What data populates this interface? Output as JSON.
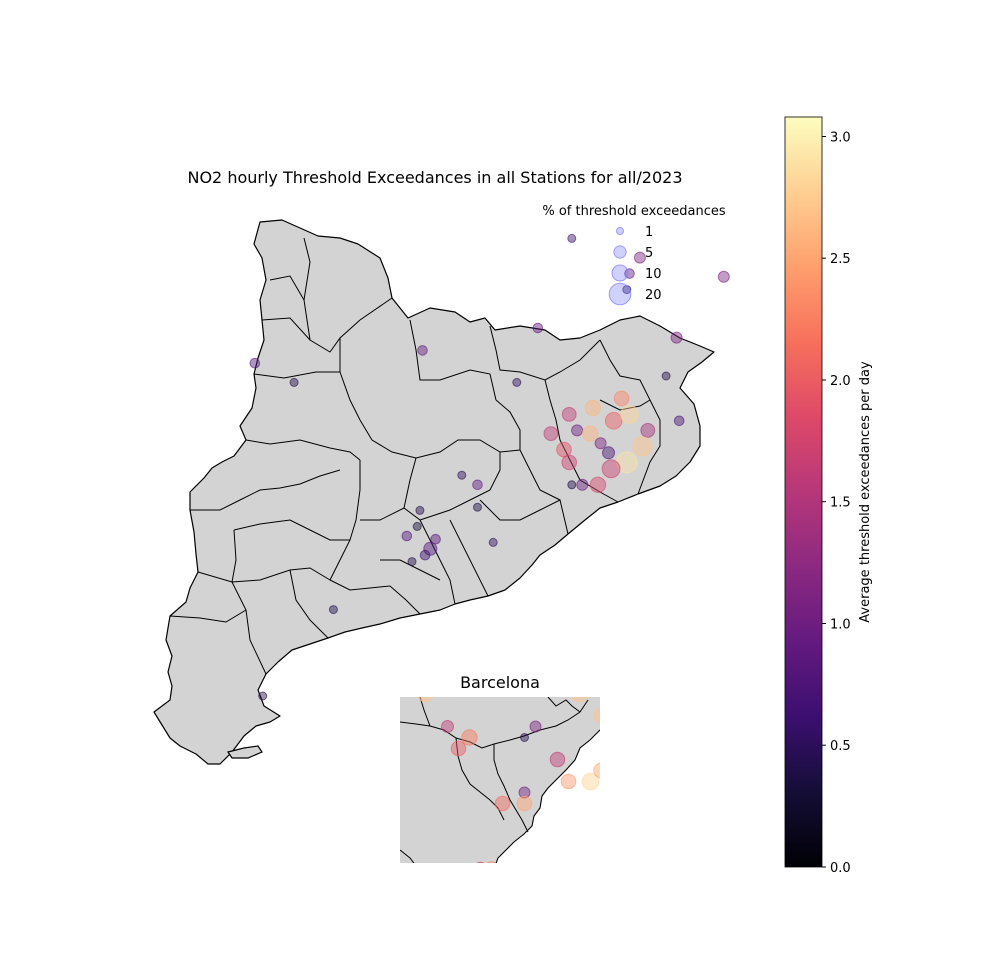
{
  "title": "NO2 hourly Threshold Exceedances in all Stations for all/2023",
  "legend": {
    "title": "% of threshold exceedances",
    "entries": [
      {
        "label": "1",
        "size": 1
      },
      {
        "label": "5",
        "size": 5
      },
      {
        "label": "10",
        "size": 10
      },
      {
        "label": "20",
        "size": 20
      }
    ],
    "color": "#7b7bff"
  },
  "colorbar": {
    "label": "Average threshold exceedances per day",
    "min": 0.0,
    "max": 3.08,
    "ticks": [
      "0.0",
      "0.5",
      "1.0",
      "1.5",
      "2.0",
      "2.5",
      "3.0"
    ],
    "tick_values": [
      0.0,
      0.5,
      1.0,
      1.5,
      2.0,
      2.5,
      3.0
    ],
    "colormap": "magma"
  },
  "inset": {
    "title": "Barcelona"
  },
  "colors": {
    "land": "#d3d3d3",
    "border": "#000000",
    "background": "#ffffff"
  },
  "chart_data": {
    "type": "scatter",
    "note_encoding": "size = % of threshold exceedances, color = average exceedances per day",
    "stations_main": [
      {
        "lon": 1.19,
        "lat": 41.8,
        "pct": 2,
        "avg": 0.9
      },
      {
        "lon": 1.76,
        "lat": 42.15,
        "pct": 1,
        "avg": 0.6
      },
      {
        "lon": 1.63,
        "lat": 41.87,
        "pct": 2,
        "avg": 0.9
      },
      {
        "lon": 1.55,
        "lat": 41.7,
        "pct": 1,
        "avg": 0.5
      },
      {
        "lon": 2.02,
        "lat": 42.09,
        "pct": 3,
        "avg": 1.1
      },
      {
        "lon": 1.98,
        "lat": 42.04,
        "pct": 2,
        "avg": 0.9
      },
      {
        "lon": 1.97,
        "lat": 41.99,
        "pct": 1,
        "avg": 0.4
      },
      {
        "lon": 2.16,
        "lat": 41.84,
        "pct": 3,
        "avg": 1.1
      },
      {
        "lon": 2.34,
        "lat": 42.03,
        "pct": 3,
        "avg": 1.1
      },
      {
        "lon": 2.12,
        "lat": 41.72,
        "pct": 1,
        "avg": 0.4
      },
      {
        "lon": 0.55,
        "lat": 41.76,
        "pct": 2,
        "avg": 0.8
      },
      {
        "lon": 0.7,
        "lat": 41.7,
        "pct": 1,
        "avg": 0.4
      },
      {
        "lon": 1.75,
        "lat": 41.6,
        "pct": 6,
        "avg": 1.6
      },
      {
        "lon": 1.84,
        "lat": 41.62,
        "pct": 8,
        "avg": 2.6
      },
      {
        "lon": 1.95,
        "lat": 41.65,
        "pct": 7,
        "avg": 2.3
      },
      {
        "lon": 1.92,
        "lat": 41.58,
        "pct": 10,
        "avg": 2.0
      },
      {
        "lon": 1.98,
        "lat": 41.6,
        "pct": 12,
        "avg": 2.8
      },
      {
        "lon": 2.05,
        "lat": 41.55,
        "pct": 6,
        "avg": 1.4
      },
      {
        "lon": 2.17,
        "lat": 41.58,
        "pct": 2,
        "avg": 0.7
      },
      {
        "lon": 1.68,
        "lat": 41.54,
        "pct": 6,
        "avg": 1.6
      },
      {
        "lon": 1.78,
        "lat": 41.55,
        "pct": 3,
        "avg": 1.0
      },
      {
        "lon": 1.83,
        "lat": 41.54,
        "pct": 8,
        "avg": 2.6
      },
      {
        "lon": 1.87,
        "lat": 41.51,
        "pct": 3,
        "avg": 1.1
      },
      {
        "lon": 1.73,
        "lat": 41.49,
        "pct": 7,
        "avg": 1.9
      },
      {
        "lon": 1.75,
        "lat": 41.45,
        "pct": 7,
        "avg": 1.7
      },
      {
        "lon": 1.9,
        "lat": 41.48,
        "pct": 4,
        "avg": 0.7
      },
      {
        "lon": 1.97,
        "lat": 41.45,
        "pct": 18,
        "avg": 2.9
      },
      {
        "lon": 2.03,
        "lat": 41.5,
        "pct": 14,
        "avg": 2.7
      },
      {
        "lon": 1.91,
        "lat": 41.43,
        "pct": 12,
        "avg": 1.7
      },
      {
        "lon": 1.86,
        "lat": 41.38,
        "pct": 8,
        "avg": 1.8
      },
      {
        "lon": 1.8,
        "lat": 41.38,
        "pct": 3,
        "avg": 1.0
      },
      {
        "lon": 1.76,
        "lat": 41.38,
        "pct": 1,
        "avg": 0.4
      },
      {
        "lon": 1.4,
        "lat": 41.38,
        "pct": 2,
        "avg": 0.9
      },
      {
        "lon": 1.34,
        "lat": 41.41,
        "pct": 1,
        "avg": 0.5
      },
      {
        "lon": 1.4,
        "lat": 41.31,
        "pct": 1,
        "avg": 0.4
      },
      {
        "lon": 1.46,
        "lat": 41.2,
        "pct": 1,
        "avg": 0.5
      },
      {
        "lon": 1.18,
        "lat": 41.3,
        "pct": 1,
        "avg": 0.4
      },
      {
        "lon": 1.17,
        "lat": 41.25,
        "pct": 1,
        "avg": 0.3
      },
      {
        "lon": 1.13,
        "lat": 41.22,
        "pct": 2,
        "avg": 0.8
      },
      {
        "lon": 1.24,
        "lat": 41.21,
        "pct": 2,
        "avg": 0.8
      },
      {
        "lon": 1.22,
        "lat": 41.18,
        "pct": 5,
        "avg": 0.8
      },
      {
        "lon": 1.2,
        "lat": 41.16,
        "pct": 2,
        "avg": 0.6
      },
      {
        "lon": 1.15,
        "lat": 41.14,
        "pct": 1,
        "avg": 0.4
      },
      {
        "lon": 0.85,
        "lat": 40.99,
        "pct": 1,
        "avg": 0.4
      },
      {
        "lon": 0.58,
        "lat": 40.72,
        "pct": 1,
        "avg": 0.4
      }
    ],
    "stations_inset": [
      {
        "lon": 1.99,
        "lat": 41.58,
        "pct": 8,
        "avg": 1.8
      },
      {
        "lon": 2.06,
        "lat": 41.59,
        "pct": 3,
        "avg": 1.0
      },
      {
        "lon": 2.07,
        "lat": 41.58,
        "pct": 6,
        "avg": 1.6
      },
      {
        "lon": 2.11,
        "lat": 41.58,
        "pct": 7,
        "avg": 2.0
      },
      {
        "lon": 2.15,
        "lat": 41.54,
        "pct": 10,
        "avg": 2.7
      },
      {
        "lon": 2.16,
        "lat": 41.55,
        "pct": 12,
        "avg": 3.05
      },
      {
        "lon": 2.18,
        "lat": 41.54,
        "pct": 8,
        "avg": 2.1
      },
      {
        "lon": 2.17,
        "lat": 41.52,
        "pct": 8,
        "avg": 2.7
      },
      {
        "lon": 2.01,
        "lat": 41.54,
        "pct": 10,
        "avg": 2.7
      },
      {
        "lon": 2.03,
        "lat": 41.51,
        "pct": 4,
        "avg": 1.6
      },
      {
        "lon": 2.04,
        "lat": 41.49,
        "pct": 7,
        "avg": 2.0
      },
      {
        "lon": 2.05,
        "lat": 41.5,
        "pct": 8,
        "avg": 2.2
      },
      {
        "lon": 2.11,
        "lat": 41.51,
        "pct": 3,
        "avg": 1.1
      },
      {
        "lon": 2.1,
        "lat": 41.5,
        "pct": 1,
        "avg": 0.4
      },
      {
        "lon": 2.13,
        "lat": 41.48,
        "pct": 7,
        "avg": 1.6
      },
      {
        "lon": 2.14,
        "lat": 41.46,
        "pct": 7,
        "avg": 2.4
      },
      {
        "lon": 2.1,
        "lat": 41.45,
        "pct": 3,
        "avg": 1.0
      },
      {
        "lon": 2.08,
        "lat": 41.44,
        "pct": 7,
        "avg": 2.1
      },
      {
        "lon": 2.1,
        "lat": 41.44,
        "pct": 7,
        "avg": 2.5
      },
      {
        "lon": 2.16,
        "lat": 41.46,
        "pct": 10,
        "avg": 2.8
      },
      {
        "lon": 2.17,
        "lat": 41.47,
        "pct": 8,
        "avg": 2.5
      },
      {
        "lon": 2.06,
        "lat": 41.38,
        "pct": 7,
        "avg": 1.7
      },
      {
        "lon": 2.07,
        "lat": 41.38,
        "pct": 8,
        "avg": 2.3
      },
      {
        "lon": 2.02,
        "lat": 41.37,
        "pct": 3,
        "avg": 1.1
      },
      {
        "lon": 2.01,
        "lat": 41.36,
        "pct": 1,
        "avg": 0.4
      }
    ]
  }
}
